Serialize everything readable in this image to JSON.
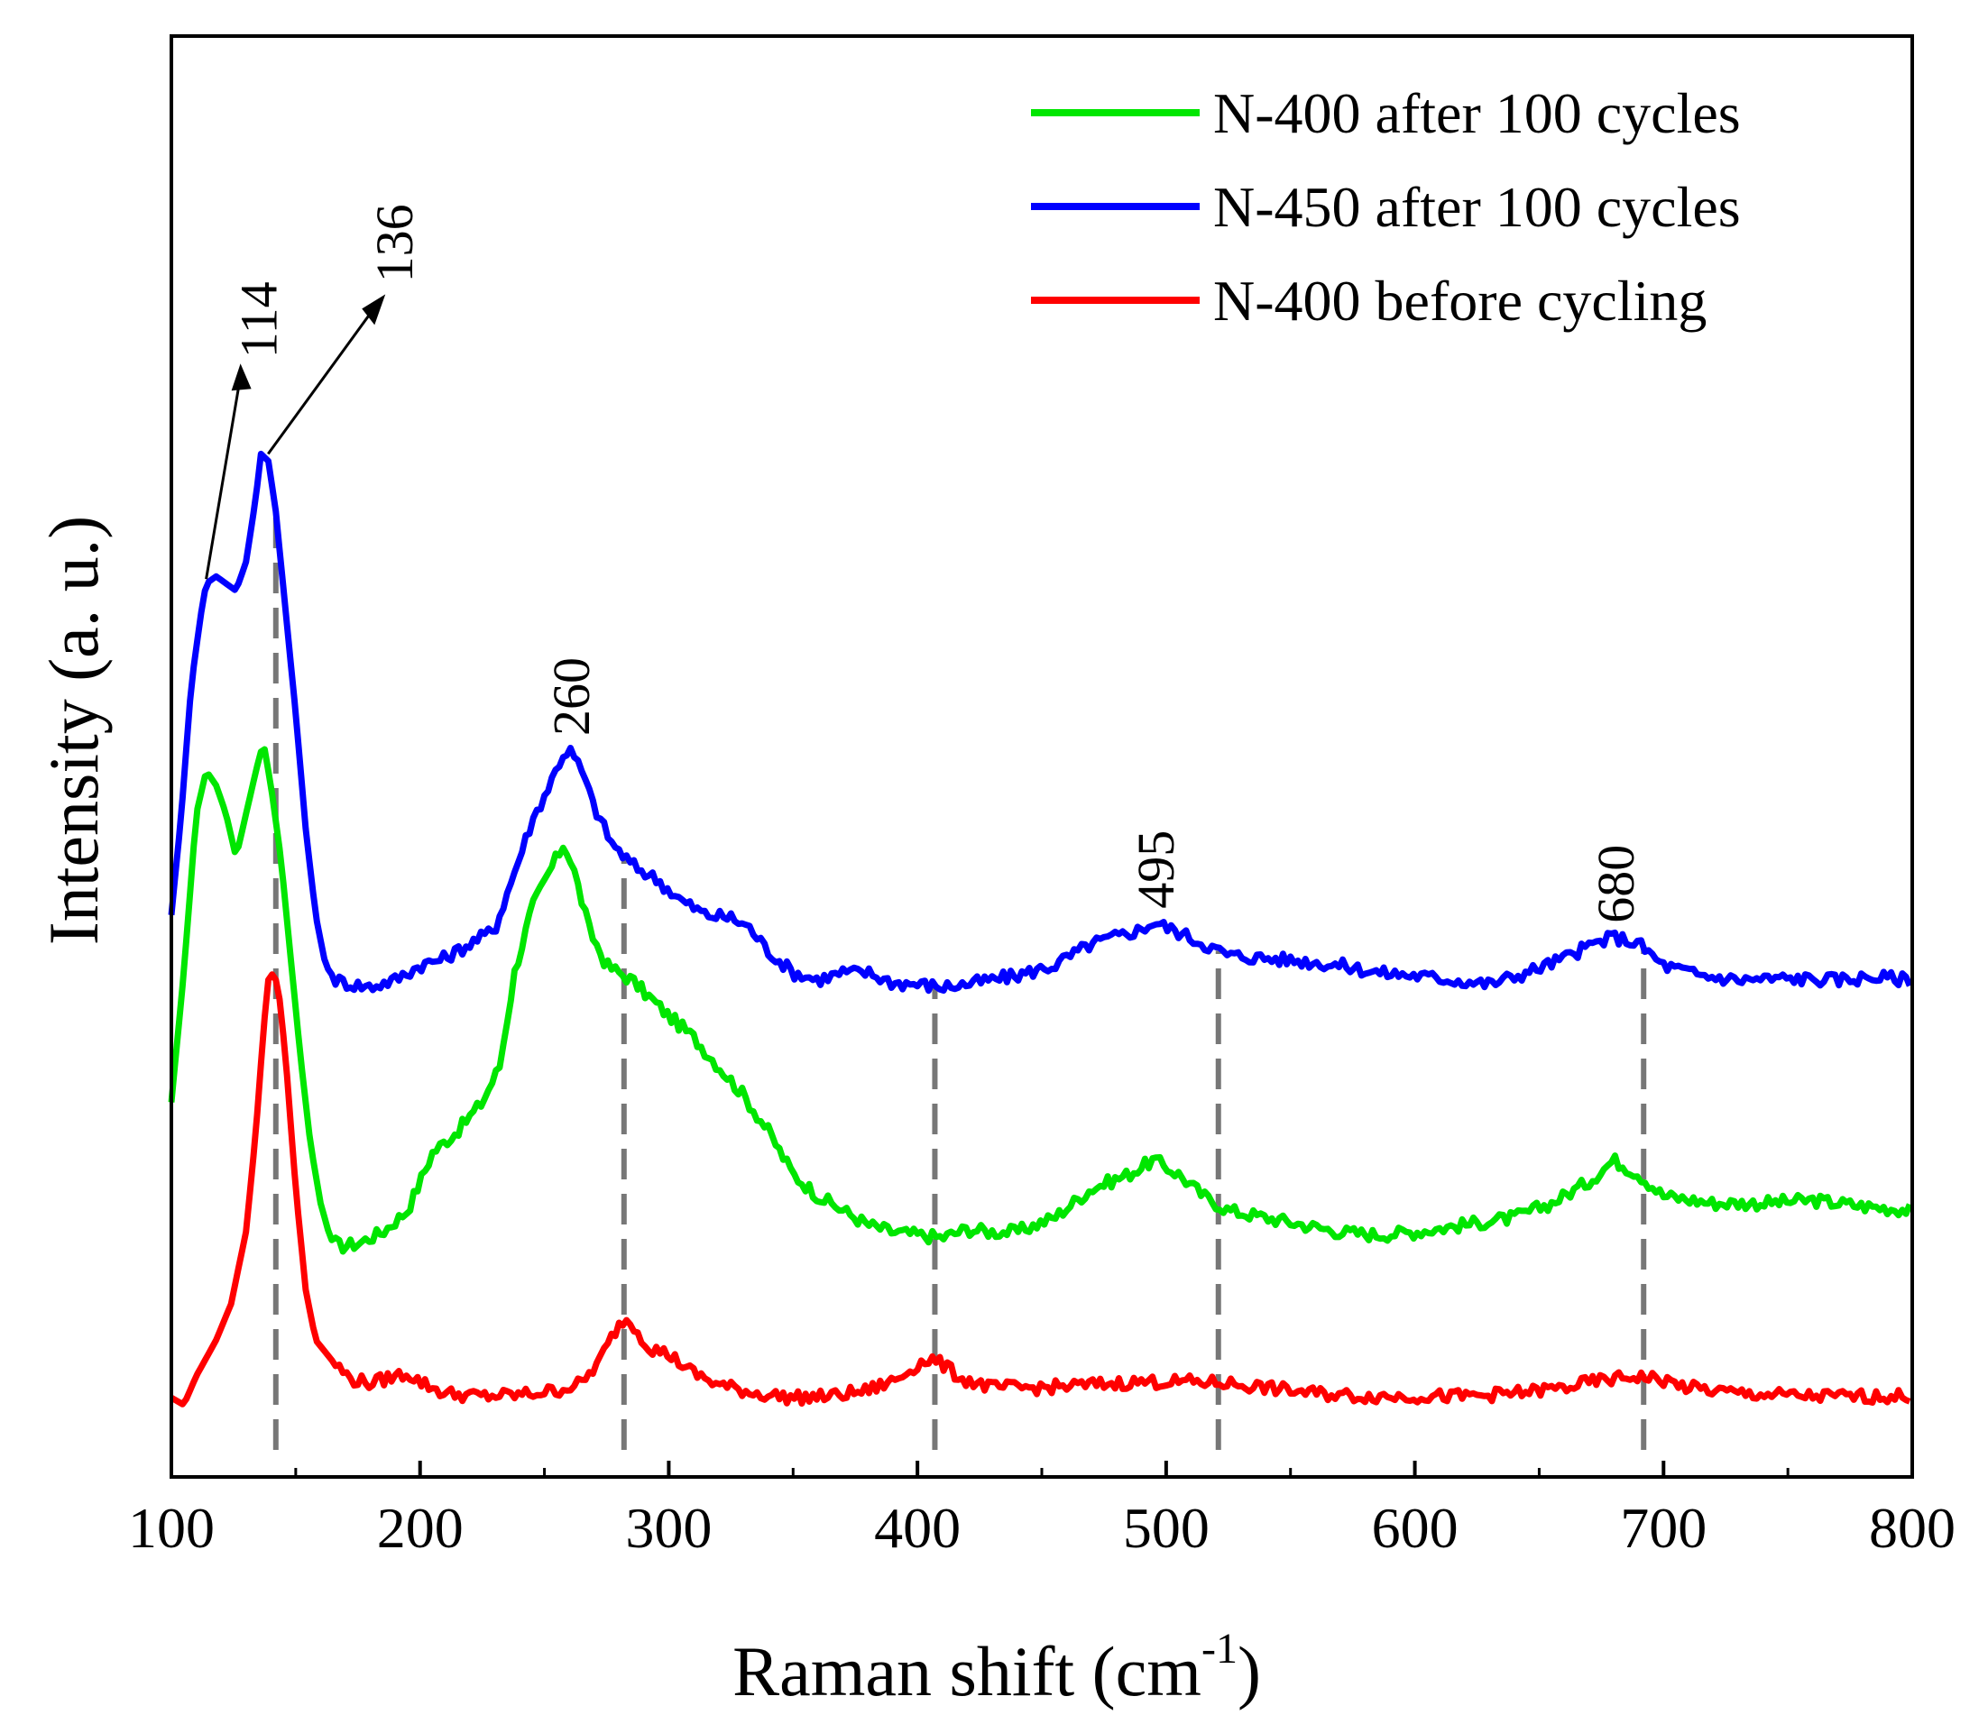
{
  "chart_data": {
    "type": "line",
    "xlabel": "Raman shift (cm",
    "xlabel_sup": "-1",
    "xlabel_close": ")",
    "ylabel": "Intensity (a. u.)",
    "xlim": [
      100,
      800
    ],
    "ylim": [
      0,
      10
    ],
    "x_ticks": [
      100,
      200,
      300,
      400,
      500,
      600,
      700,
      800
    ],
    "y_ticks_shown": false,
    "grid": false,
    "legend_position": "top-right",
    "series": [
      {
        "name": "N-400 after 100 cycles",
        "color": "#00e600",
        "points": [
          [
            100,
            2.6
          ],
          [
            105,
            3.5
          ],
          [
            110,
            4.6
          ],
          [
            114,
            4.9
          ],
          [
            118,
            4.8
          ],
          [
            122,
            4.6
          ],
          [
            126,
            4.3
          ],
          [
            130,
            4.6
          ],
          [
            134,
            4.9
          ],
          [
            137,
            5.1
          ],
          [
            140,
            4.8
          ],
          [
            144,
            4.3
          ],
          [
            148,
            3.6
          ],
          [
            152,
            2.9
          ],
          [
            156,
            2.3
          ],
          [
            160,
            1.9
          ],
          [
            164,
            1.65
          ],
          [
            168,
            1.6
          ],
          [
            175,
            1.62
          ],
          [
            185,
            1.7
          ],
          [
            195,
            1.85
          ],
          [
            205,
            2.25
          ],
          [
            215,
            2.4
          ],
          [
            225,
            2.6
          ],
          [
            232,
            2.85
          ],
          [
            238,
            3.5
          ],
          [
            245,
            3.95
          ],
          [
            252,
            4.2
          ],
          [
            258,
            4.4
          ],
          [
            262,
            4.2
          ],
          [
            268,
            3.8
          ],
          [
            275,
            3.55
          ],
          [
            285,
            3.45
          ],
          [
            300,
            3.2
          ],
          [
            310,
            3.05
          ],
          [
            320,
            2.85
          ],
          [
            330,
            2.65
          ],
          [
            340,
            2.4
          ],
          [
            350,
            2.1
          ],
          [
            360,
            1.95
          ],
          [
            370,
            1.85
          ],
          [
            380,
            1.75
          ],
          [
            390,
            1.7
          ],
          [
            400,
            1.68
          ],
          [
            410,
            1.66
          ],
          [
            420,
            1.72
          ],
          [
            430,
            1.7
          ],
          [
            440,
            1.7
          ],
          [
            455,
            1.8
          ],
          [
            470,
            2.0
          ],
          [
            485,
            2.1
          ],
          [
            495,
            2.2
          ],
          [
            505,
            2.1
          ],
          [
            515,
            1.95
          ],
          [
            525,
            1.85
          ],
          [
            540,
            1.8
          ],
          [
            555,
            1.75
          ],
          [
            570,
            1.7
          ],
          [
            585,
            1.68
          ],
          [
            600,
            1.7
          ],
          [
            620,
            1.75
          ],
          [
            640,
            1.8
          ],
          [
            655,
            1.9
          ],
          [
            670,
            2.05
          ],
          [
            680,
            2.2
          ],
          [
            690,
            2.1
          ],
          [
            700,
            1.95
          ],
          [
            720,
            1.9
          ],
          [
            740,
            1.9
          ],
          [
            760,
            1.92
          ],
          [
            780,
            1.88
          ],
          [
            800,
            1.85
          ]
        ]
      },
      {
        "name": "N-450 after 100 cycles",
        "color": "#0000ff",
        "points": [
          [
            100,
            3.9
          ],
          [
            104,
            4.6
          ],
          [
            108,
            5.5
          ],
          [
            112,
            6.0
          ],
          [
            114,
            6.2
          ],
          [
            118,
            6.25
          ],
          [
            122,
            6.2
          ],
          [
            126,
            6.15
          ],
          [
            130,
            6.35
          ],
          [
            134,
            6.8
          ],
          [
            136,
            7.1
          ],
          [
            139,
            7.05
          ],
          [
            142,
            6.7
          ],
          [
            146,
            6.0
          ],
          [
            150,
            5.3
          ],
          [
            154,
            4.5
          ],
          [
            158,
            3.9
          ],
          [
            162,
            3.55
          ],
          [
            166,
            3.45
          ],
          [
            172,
            3.42
          ],
          [
            180,
            3.4
          ],
          [
            190,
            3.45
          ],
          [
            200,
            3.55
          ],
          [
            210,
            3.6
          ],
          [
            220,
            3.7
          ],
          [
            230,
            3.8
          ],
          [
            238,
            4.2
          ],
          [
            245,
            4.55
          ],
          [
            252,
            4.8
          ],
          [
            257,
            5.0
          ],
          [
            260,
            5.05
          ],
          [
            265,
            4.9
          ],
          [
            270,
            4.65
          ],
          [
            277,
            4.4
          ],
          [
            285,
            4.25
          ],
          [
            295,
            4.15
          ],
          [
            305,
            4.0
          ],
          [
            315,
            3.9
          ],
          [
            325,
            3.88
          ],
          [
            332,
            3.82
          ],
          [
            340,
            3.65
          ],
          [
            350,
            3.5
          ],
          [
            360,
            3.45
          ],
          [
            370,
            3.5
          ],
          [
            380,
            3.5
          ],
          [
            390,
            3.43
          ],
          [
            400,
            3.42
          ],
          [
            410,
            3.4
          ],
          [
            420,
            3.42
          ],
          [
            430,
            3.45
          ],
          [
            440,
            3.48
          ],
          [
            455,
            3.55
          ],
          [
            470,
            3.7
          ],
          [
            480,
            3.75
          ],
          [
            490,
            3.8
          ],
          [
            495,
            3.85
          ],
          [
            505,
            3.78
          ],
          [
            515,
            3.7
          ],
          [
            525,
            3.62
          ],
          [
            540,
            3.6
          ],
          [
            555,
            3.58
          ],
          [
            570,
            3.55
          ],
          [
            585,
            3.5
          ],
          [
            600,
            3.48
          ],
          [
            615,
            3.45
          ],
          [
            630,
            3.42
          ],
          [
            645,
            3.5
          ],
          [
            660,
            3.6
          ],
          [
            672,
            3.7
          ],
          [
            680,
            3.75
          ],
          [
            690,
            3.7
          ],
          [
            700,
            3.55
          ],
          [
            715,
            3.48
          ],
          [
            730,
            3.45
          ],
          [
            750,
            3.46
          ],
          [
            770,
            3.45
          ],
          [
            785,
            3.47
          ],
          [
            800,
            3.45
          ]
        ]
      },
      {
        "name": "N-400 before cycling",
        "color": "#ff0000",
        "points": [
          [
            100,
            0.55
          ],
          [
            105,
            0.5
          ],
          [
            110,
            0.7
          ],
          [
            118,
            0.95
          ],
          [
            124,
            1.2
          ],
          [
            130,
            1.7
          ],
          [
            134,
            2.4
          ],
          [
            137,
            3.1
          ],
          [
            139,
            3.45
          ],
          [
            141,
            3.5
          ],
          [
            143,
            3.4
          ],
          [
            146,
            2.9
          ],
          [
            150,
            2.0
          ],
          [
            154,
            1.3
          ],
          [
            158,
            0.95
          ],
          [
            165,
            0.8
          ],
          [
            172,
            0.68
          ],
          [
            180,
            0.65
          ],
          [
            190,
            0.7
          ],
          [
            195,
            0.72
          ],
          [
            200,
            0.66
          ],
          [
            210,
            0.58
          ],
          [
            225,
            0.56
          ],
          [
            240,
            0.57
          ],
          [
            255,
            0.6
          ],
          [
            265,
            0.65
          ],
          [
            272,
            0.8
          ],
          [
            278,
            1.0
          ],
          [
            282,
            1.1
          ],
          [
            286,
            1.05
          ],
          [
            292,
            0.9
          ],
          [
            300,
            0.85
          ],
          [
            310,
            0.72
          ],
          [
            320,
            0.64
          ],
          [
            335,
            0.58
          ],
          [
            350,
            0.55
          ],
          [
            365,
            0.56
          ],
          [
            380,
            0.6
          ],
          [
            392,
            0.68
          ],
          [
            400,
            0.78
          ],
          [
            405,
            0.82
          ],
          [
            410,
            0.78
          ],
          [
            418,
            0.68
          ],
          [
            430,
            0.62
          ],
          [
            450,
            0.62
          ],
          [
            470,
            0.64
          ],
          [
            490,
            0.66
          ],
          [
            510,
            0.66
          ],
          [
            525,
            0.65
          ],
          [
            540,
            0.62
          ],
          [
            560,
            0.58
          ],
          [
            580,
            0.56
          ],
          [
            600,
            0.56
          ],
          [
            620,
            0.56
          ],
          [
            640,
            0.58
          ],
          [
            660,
            0.62
          ],
          [
            675,
            0.67
          ],
          [
            690,
            0.7
          ],
          [
            700,
            0.67
          ],
          [
            710,
            0.62
          ],
          [
            730,
            0.58
          ],
          [
            760,
            0.56
          ],
          [
            800,
            0.56
          ]
        ]
      }
    ],
    "annotations": [
      {
        "text": "114",
        "x": 114
      },
      {
        "text": "136",
        "x": 136
      },
      {
        "text": "260",
        "x": 260
      },
      {
        "text": "495",
        "x": 495
      },
      {
        "text": "680",
        "x": 680
      }
    ],
    "reference_lines_x": [
      142,
      282,
      407,
      521,
      692
    ]
  }
}
